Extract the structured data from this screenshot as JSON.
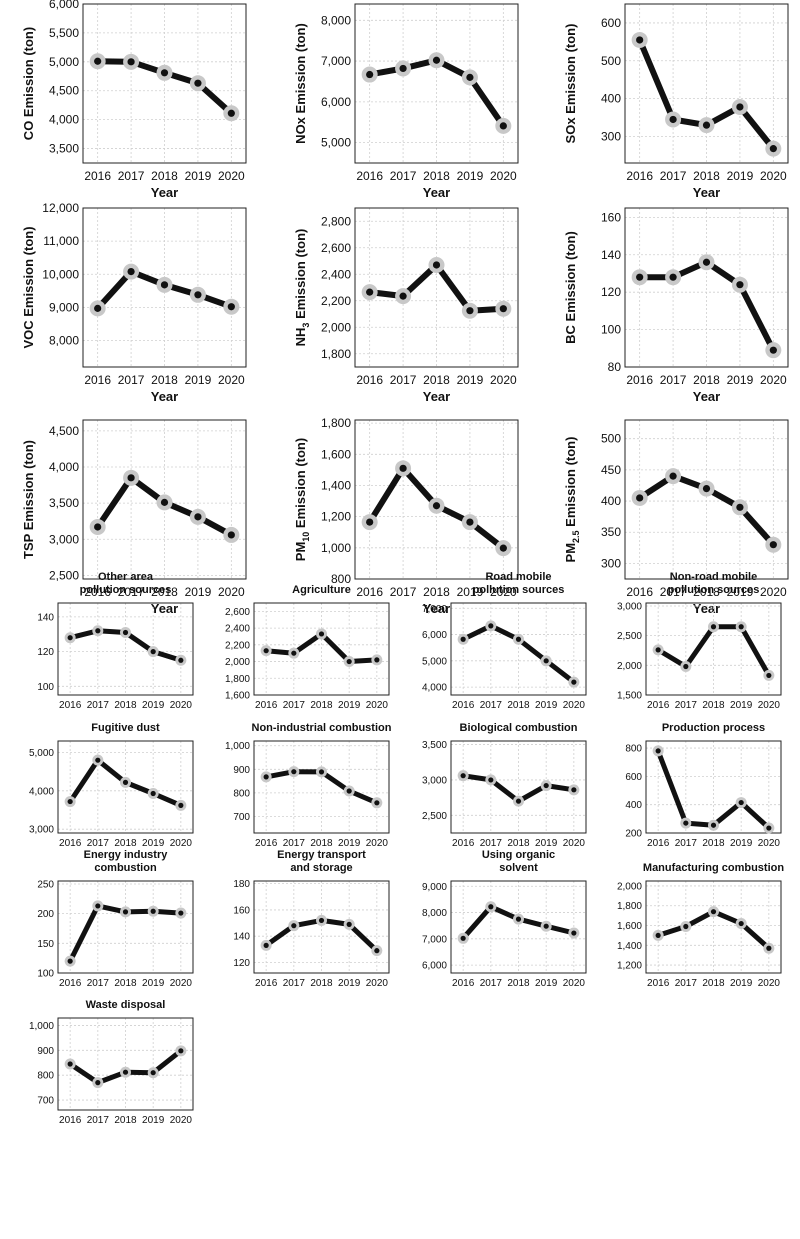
{
  "chart_data": [
    {
      "type": "line",
      "group": "pollutant",
      "title": "",
      "ylabel": "CO Emission (ton)",
      "ylabel_parts": [
        [
          "CO Emission (ton)",
          ""
        ]
      ],
      "xlabel": "Year",
      "x": [
        "2016",
        "2017",
        "2018",
        "2019",
        "2020"
      ],
      "values": [
        5010,
        5000,
        4810,
        4630,
        4110
      ],
      "ylim": [
        3250,
        6000
      ],
      "yticks": [
        3500,
        4000,
        4500,
        5000,
        5500,
        6000
      ],
      "ytick_labels": [
        "3,500",
        "4,000",
        "4,500",
        "5,000",
        "5,500",
        "6,000"
      ]
    },
    {
      "type": "line",
      "group": "pollutant",
      "title": "",
      "ylabel": "NOx Emission (ton)",
      "ylabel_parts": [
        [
          "NOx Emission (ton)",
          ""
        ]
      ],
      "xlabel": "Year",
      "x": [
        "2016",
        "2017",
        "2018",
        "2019",
        "2020"
      ],
      "values": [
        6670,
        6820,
        7020,
        6600,
        5410
      ],
      "ylim": [
        4500,
        8400
      ],
      "yticks": [
        5000,
        6000,
        7000,
        8000
      ],
      "ytick_labels": [
        "5,000",
        "6,000",
        "7,000",
        "8,000"
      ]
    },
    {
      "type": "line",
      "group": "pollutant",
      "title": "",
      "ylabel": "SOx Emission (ton)",
      "ylabel_parts": [
        [
          "SOx Emission (ton)",
          ""
        ]
      ],
      "xlabel": "Year",
      "x": [
        "2016",
        "2017",
        "2018",
        "2019",
        "2020"
      ],
      "values": [
        555,
        345,
        330,
        378,
        268
      ],
      "ylim": [
        230,
        650
      ],
      "yticks": [
        300,
        400,
        500,
        600
      ],
      "ytick_labels": [
        "300",
        "400",
        "500",
        "600"
      ]
    },
    {
      "type": "line",
      "group": "pollutant",
      "title": "",
      "ylabel": "VOC Emission (ton)",
      "ylabel_parts": [
        [
          "VOC Emission (ton)",
          ""
        ]
      ],
      "xlabel": "Year",
      "x": [
        "2016",
        "2017",
        "2018",
        "2019",
        "2020"
      ],
      "values": [
        8970,
        10080,
        9680,
        9380,
        9020
      ],
      "ylim": [
        7200,
        12000
      ],
      "yticks": [
        8000,
        9000,
        10000,
        11000,
        12000
      ],
      "ytick_labels": [
        "8,000",
        "9,000",
        "10,000",
        "11,000",
        "12,000"
      ]
    },
    {
      "type": "line",
      "group": "pollutant",
      "title": "",
      "ylabel": "NH3 Emission (ton)",
      "ylabel_parts": [
        [
          "NH",
          ""
        ],
        [
          "3",
          "sub"
        ],
        [
          " Emission (ton)",
          ""
        ]
      ],
      "xlabel": "Year",
      "x": [
        "2016",
        "2017",
        "2018",
        "2019",
        "2020"
      ],
      "values": [
        2265,
        2235,
        2470,
        2125,
        2140
      ],
      "ylim": [
        1700,
        2900
      ],
      "yticks": [
        1800,
        2000,
        2200,
        2400,
        2600,
        2800
      ],
      "ytick_labels": [
        "1,800",
        "2,000",
        "2,200",
        "2,400",
        "2,600",
        "2,800"
      ]
    },
    {
      "type": "line",
      "group": "pollutant",
      "title": "",
      "ylabel": "BC Emission (ton)",
      "ylabel_parts": [
        [
          "BC Emission (ton)",
          ""
        ]
      ],
      "xlabel": "Year",
      "x": [
        "2016",
        "2017",
        "2018",
        "2019",
        "2020"
      ],
      "values": [
        128,
        128,
        136,
        124,
        89
      ],
      "ylim": [
        80,
        165
      ],
      "yticks": [
        80,
        100,
        120,
        140,
        160
      ],
      "ytick_labels": [
        "80",
        "100",
        "120",
        "140",
        "160"
      ]
    },
    {
      "type": "line",
      "group": "pollutant",
      "title": "",
      "ylabel": "TSP Emission (ton)",
      "ylabel_parts": [
        [
          "TSP Emission (ton)",
          ""
        ]
      ],
      "xlabel": "Year",
      "x": [
        "2016",
        "2017",
        "2018",
        "2019",
        "2020"
      ],
      "values": [
        3170,
        3850,
        3510,
        3310,
        3060
      ],
      "ylim": [
        2450,
        4650
      ],
      "yticks": [
        2500,
        3000,
        3500,
        4000,
        4500
      ],
      "ytick_labels": [
        "2,500",
        "3,000",
        "3,500",
        "4,000",
        "4,500"
      ]
    },
    {
      "type": "line",
      "group": "pollutant",
      "title": "",
      "ylabel": "PM10 Emission (ton)",
      "ylabel_parts": [
        [
          "PM",
          ""
        ],
        [
          "10",
          "sub"
        ],
        [
          " Emission (ton)",
          ""
        ]
      ],
      "xlabel": "Year",
      "x": [
        "2016",
        "2017",
        "2018",
        "2019",
        "2020"
      ],
      "values": [
        1165,
        1510,
        1270,
        1165,
        998
      ],
      "ylim": [
        800,
        1820
      ],
      "yticks": [
        800,
        1000,
        1200,
        1400,
        1600,
        1800
      ],
      "ytick_labels": [
        "800",
        "1,000",
        "1,200",
        "1,400",
        "1,600",
        "1,800"
      ]
    },
    {
      "type": "line",
      "group": "pollutant",
      "title": "",
      "ylabel": "PM2.5 Emission (ton)",
      "ylabel_parts": [
        [
          "PM",
          ""
        ],
        [
          "2.5",
          "sub"
        ],
        [
          " Emission (ton)",
          ""
        ]
      ],
      "xlabel": "Year",
      "x": [
        "2016",
        "2017",
        "2018",
        "2019",
        "2020"
      ],
      "values": [
        405,
        440,
        420,
        390,
        330
      ],
      "ylim": [
        275,
        530
      ],
      "yticks": [
        300,
        350,
        400,
        450,
        500
      ],
      "ytick_labels": [
        "300",
        "350",
        "400",
        "450",
        "500"
      ]
    },
    {
      "type": "line",
      "group": "source",
      "title": [
        "Other area",
        "pollution sources"
      ],
      "x": [
        "2016",
        "2017",
        "2018",
        "2019",
        "2020"
      ],
      "values": [
        128,
        132,
        131,
        120,
        115
      ],
      "ylim": [
        95,
        148
      ],
      "yticks": [
        100,
        120,
        140
      ],
      "ytick_labels": [
        "100",
        "120",
        "140"
      ]
    },
    {
      "type": "line",
      "group": "source",
      "title": [
        "Agriculture"
      ],
      "x": [
        "2016",
        "2017",
        "2018",
        "2019",
        "2020"
      ],
      "values": [
        2130,
        2100,
        2330,
        2000,
        2020
      ],
      "ylim": [
        1600,
        2700
      ],
      "yticks": [
        1600,
        1800,
        2000,
        2200,
        2400,
        2600
      ],
      "ytick_labels": [
        "1,600",
        "1,800",
        "2,000",
        "2,200",
        "2,400",
        "2,600"
      ]
    },
    {
      "type": "line",
      "group": "source",
      "title": [
        "Road mobile",
        "pollution sources"
      ],
      "x": [
        "2016",
        "2017",
        "2018",
        "2019",
        "2020"
      ],
      "values": [
        5820,
        6330,
        5820,
        5000,
        4190
      ],
      "ylim": [
        3700,
        7200
      ],
      "yticks": [
        4000,
        5000,
        6000,
        7000
      ],
      "ytick_labels": [
        "4,000",
        "5,000",
        "6,000",
        "7,000"
      ]
    },
    {
      "type": "line",
      "group": "source",
      "title": [
        "Non-road mobile",
        "pollution sources"
      ],
      "x": [
        "2016",
        "2017",
        "2018",
        "2019",
        "2020"
      ],
      "values": [
        2260,
        1980,
        2650,
        2650,
        1830
      ],
      "ylim": [
        1500,
        3050
      ],
      "yticks": [
        1500,
        2000,
        2500,
        3000
      ],
      "ytick_labels": [
        "1,500",
        "2,000",
        "2,500",
        "3,000"
      ]
    },
    {
      "type": "line",
      "group": "source",
      "title": [
        "Fugitive dust"
      ],
      "x": [
        "2016",
        "2017",
        "2018",
        "2019",
        "2020"
      ],
      "values": [
        3720,
        4800,
        4220,
        3930,
        3620
      ],
      "ylim": [
        2900,
        5300
      ],
      "yticks": [
        3000,
        4000,
        5000
      ],
      "ytick_labels": [
        "3,000",
        "4,000",
        "5,000"
      ]
    },
    {
      "type": "line",
      "group": "source",
      "title": [
        "Non-industrial combustion"
      ],
      "x": [
        "2016",
        "2017",
        "2018",
        "2019",
        "2020"
      ],
      "values": [
        868,
        890,
        889,
        808,
        758
      ],
      "ylim": [
        630,
        1020
      ],
      "yticks": [
        700,
        800,
        900,
        1000
      ],
      "ytick_labels": [
        "700",
        "800",
        "900",
        "1,000"
      ]
    },
    {
      "type": "line",
      "group": "source",
      "title": [
        "Biological combustion"
      ],
      "x": [
        "2016",
        "2017",
        "2018",
        "2019",
        "2020"
      ],
      "values": [
        3060,
        3000,
        2700,
        2920,
        2860
      ],
      "ylim": [
        2250,
        3550
      ],
      "yticks": [
        2500,
        3000,
        3500
      ],
      "ytick_labels": [
        "2,500",
        "3,000",
        "3,500"
      ]
    },
    {
      "type": "line",
      "group": "source",
      "title": [
        "Production process"
      ],
      "x": [
        "2016",
        "2017",
        "2018",
        "2019",
        "2020"
      ],
      "values": [
        780,
        270,
        255,
        415,
        235
      ],
      "ylim": [
        200,
        850
      ],
      "yticks": [
        200,
        400,
        600,
        800
      ],
      "ytick_labels": [
        "200",
        "400",
        "600",
        "800"
      ]
    },
    {
      "type": "line",
      "group": "source",
      "title": [
        "Energy industry",
        "combustion"
      ],
      "x": [
        "2016",
        "2017",
        "2018",
        "2019",
        "2020"
      ],
      "values": [
        120,
        213,
        203,
        204,
        201
      ],
      "ylim": [
        100,
        255
      ],
      "yticks": [
        100,
        150,
        200,
        250
      ],
      "ytick_labels": [
        "100",
        "150",
        "200",
        "250"
      ]
    },
    {
      "type": "line",
      "group": "source",
      "title": [
        "Energy transport",
        "and storage"
      ],
      "x": [
        "2016",
        "2017",
        "2018",
        "2019",
        "2020"
      ],
      "values": [
        133,
        148,
        152,
        149,
        129
      ],
      "ylim": [
        112,
        182
      ],
      "yticks": [
        120,
        140,
        160,
        180
      ],
      "ytick_labels": [
        "120",
        "140",
        "160",
        "180"
      ]
    },
    {
      "type": "line",
      "group": "source",
      "title": [
        "Using organic",
        "solvent"
      ],
      "x": [
        "2016",
        "2017",
        "2018",
        "2019",
        "2020"
      ],
      "values": [
        7020,
        8220,
        7750,
        7480,
        7220
      ],
      "ylim": [
        5700,
        9200
      ],
      "yticks": [
        6000,
        7000,
        8000,
        9000
      ],
      "ytick_labels": [
        "6,000",
        "7,000",
        "8,000",
        "9,000"
      ]
    },
    {
      "type": "line",
      "group": "source",
      "title": [
        "Manufacturing combustion"
      ],
      "x": [
        "2016",
        "2017",
        "2018",
        "2019",
        "2020"
      ],
      "values": [
        1500,
        1590,
        1740,
        1620,
        1370
      ],
      "ylim": [
        1120,
        2050
      ],
      "yticks": [
        1200,
        1400,
        1600,
        1800,
        2000
      ],
      "ytick_labels": [
        "1,200",
        "1,400",
        "1,600",
        "1,800",
        "2,000"
      ]
    },
    {
      "type": "line",
      "group": "source",
      "title": [
        "Waste disposal"
      ],
      "x": [
        "2016",
        "2017",
        "2018",
        "2019",
        "2020"
      ],
      "values": [
        845,
        770,
        812,
        810,
        898
      ],
      "ylim": [
        660,
        1030
      ],
      "yticks": [
        700,
        800,
        900,
        1000
      ],
      "ytick_labels": [
        "700",
        "800",
        "900",
        "1,000"
      ]
    }
  ]
}
